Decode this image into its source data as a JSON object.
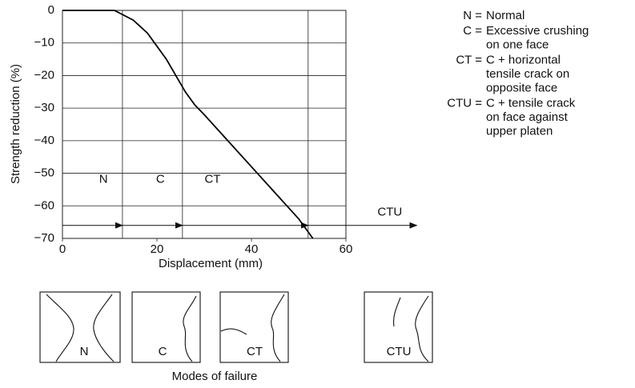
{
  "chart_data": {
    "type": "line",
    "xlabel": "Displacement (mm)",
    "ylabel": "Strength reduction (%)",
    "xlim": [
      0,
      60
    ],
    "ylim": [
      -70,
      0
    ],
    "xticks": [
      0,
      20,
      40,
      60
    ],
    "yticks": [
      0,
      {
        "value": -10,
        "label": "−10"
      },
      {
        "value": -20,
        "label": "−20"
      },
      {
        "value": -30,
        "label": "−30"
      },
      {
        "value": -40,
        "label": "−40"
      },
      {
        "value": -50,
        "label": "−50"
      },
      {
        "value": -60,
        "label": "−60"
      },
      {
        "value": -70,
        "label": "−70"
      }
    ],
    "grid": true,
    "x": [
      0,
      11,
      15,
      18,
      20,
      22,
      24,
      26,
      28,
      30,
      35,
      40,
      45,
      50,
      53
    ],
    "series": [
      {
        "color": "#000000",
        "values": [
          0,
          0,
          -3,
          -7,
          -11,
          -15,
          -20,
          -25,
          -29,
          -32,
          -40,
          -48,
          -56,
          -64,
          -70
        ]
      }
    ],
    "modes": [
      "N",
      "C",
      "CT",
      "CTU"
    ],
    "mode_bounds": [
      0,
      12.7,
      25.4,
      52,
      75
    ],
    "arrow_y": -66
  },
  "key": [
    {
      "term": "N =",
      "lines": [
        "Normal"
      ]
    },
    {
      "term": "C =",
      "lines": [
        "Excessive crushing",
        "on one face"
      ]
    },
    {
      "term": "CT =",
      "lines": [
        "C  +  horizontal",
        "tensile crack on",
        "opposite face"
      ]
    },
    {
      "term": "CTU =",
      "lines": [
        "C + tensile crack",
        "on face against",
        "upper platen"
      ]
    }
  ],
  "failure_modes": {
    "labels": [
      "N",
      "C",
      "CT",
      "CTU"
    ],
    "caption": "Modes of failure"
  }
}
